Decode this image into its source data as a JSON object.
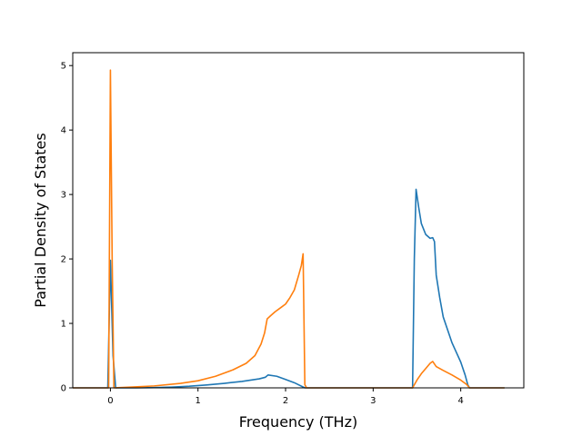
{
  "chart_data": {
    "type": "line",
    "title": "",
    "xlabel": "Frequency (THz)",
    "ylabel": "Partial Density of States",
    "xlim": [
      -0.43,
      4.72
    ],
    "ylim": [
      0,
      5.2
    ],
    "xticks": [
      0,
      1,
      2,
      3,
      4
    ],
    "yticks": [
      0,
      1,
      2,
      3,
      4,
      5
    ],
    "xtick_labels": [
      "0",
      "1",
      "2",
      "3",
      "4"
    ],
    "ytick_labels": [
      "0",
      "1",
      "2",
      "3",
      "4",
      "5"
    ],
    "grid": false,
    "legend": "none",
    "series": [
      {
        "color": "#1f77b4",
        "points": [
          [
            -0.43,
            0
          ],
          [
            -0.03,
            0
          ],
          [
            0.0,
            1.98
          ],
          [
            0.03,
            0.5
          ],
          [
            0.06,
            0
          ],
          [
            0.3,
            0.0
          ],
          [
            0.5,
            0.005
          ],
          [
            0.7,
            0.012
          ],
          [
            0.9,
            0.025
          ],
          [
            1.1,
            0.045
          ],
          [
            1.3,
            0.07
          ],
          [
            1.5,
            0.1
          ],
          [
            1.7,
            0.14
          ],
          [
            1.77,
            0.165
          ],
          [
            1.8,
            0.2
          ],
          [
            1.9,
            0.18
          ],
          [
            2.0,
            0.13
          ],
          [
            2.1,
            0.08
          ],
          [
            2.22,
            0.0
          ],
          [
            3.45,
            0.0
          ],
          [
            3.47,
            2.0
          ],
          [
            3.49,
            3.08
          ],
          [
            3.52,
            2.8
          ],
          [
            3.55,
            2.55
          ],
          [
            3.6,
            2.38
          ],
          [
            3.65,
            2.32
          ],
          [
            3.68,
            2.33
          ],
          [
            3.7,
            2.27
          ],
          [
            3.72,
            1.75
          ],
          [
            3.76,
            1.4
          ],
          [
            3.8,
            1.1
          ],
          [
            3.85,
            0.9
          ],
          [
            3.9,
            0.7
          ],
          [
            3.95,
            0.55
          ],
          [
            4.0,
            0.4
          ],
          [
            4.05,
            0.2
          ],
          [
            4.08,
            0.05
          ],
          [
            4.1,
            0.0
          ],
          [
            4.5,
            0.0
          ]
        ]
      },
      {
        "color": "#ff7f0e",
        "points": [
          [
            -0.43,
            0
          ],
          [
            -0.02,
            0
          ],
          [
            0.0,
            4.93
          ],
          [
            0.02,
            2.0
          ],
          [
            0.04,
            0
          ],
          [
            0.2,
            0.01
          ],
          [
            0.5,
            0.03
          ],
          [
            0.8,
            0.07
          ],
          [
            1.0,
            0.11
          ],
          [
            1.2,
            0.18
          ],
          [
            1.4,
            0.28
          ],
          [
            1.55,
            0.38
          ],
          [
            1.65,
            0.5
          ],
          [
            1.72,
            0.68
          ],
          [
            1.76,
            0.85
          ],
          [
            1.79,
            1.07
          ],
          [
            1.83,
            1.12
          ],
          [
            1.88,
            1.18
          ],
          [
            1.95,
            1.25
          ],
          [
            2.0,
            1.3
          ],
          [
            2.05,
            1.4
          ],
          [
            2.1,
            1.52
          ],
          [
            2.15,
            1.75
          ],
          [
            2.18,
            1.9
          ],
          [
            2.2,
            2.08
          ],
          [
            2.22,
            0.05
          ],
          [
            2.24,
            0.0
          ],
          [
            3.45,
            0.0
          ],
          [
            3.5,
            0.12
          ],
          [
            3.55,
            0.22
          ],
          [
            3.6,
            0.3
          ],
          [
            3.65,
            0.38
          ],
          [
            3.68,
            0.41
          ],
          [
            3.72,
            0.33
          ],
          [
            3.8,
            0.27
          ],
          [
            3.9,
            0.2
          ],
          [
            4.0,
            0.12
          ],
          [
            4.07,
            0.05
          ],
          [
            4.1,
            0.0
          ],
          [
            4.5,
            0.0
          ]
        ]
      }
    ]
  }
}
